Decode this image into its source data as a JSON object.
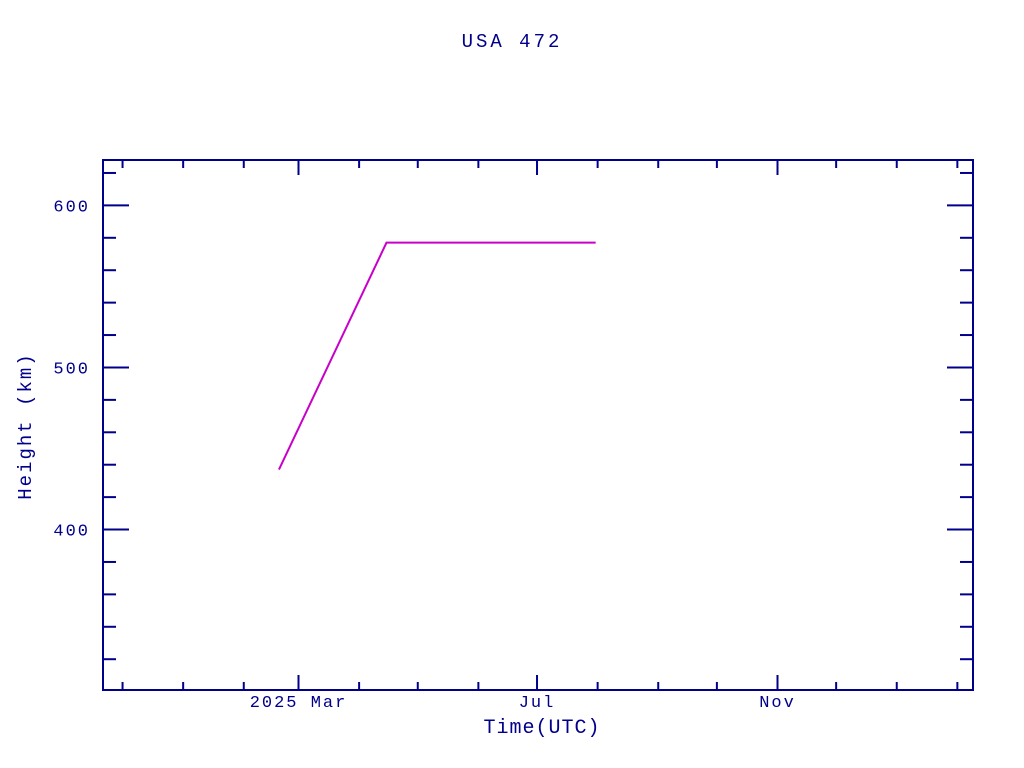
{
  "window": {
    "background": "#ffffff"
  },
  "colors": {
    "axis": "#00008b",
    "text": "#00008b",
    "line": "#c800c8"
  },
  "chart_data": {
    "type": "line",
    "title": "USA 472",
    "xlabel": "Time(UTC)",
    "ylabel": "Height (km)",
    "grid": false,
    "legend": "none",
    "x_domain": [
      "2024-11-21",
      "2026-02-09"
    ],
    "y_domain": [
      301,
      628
    ],
    "y_major_ticks": [
      400,
      500,
      600
    ],
    "y_minor_step": 20,
    "x_major_ticks": [
      {
        "date": "2025-03-01",
        "label": "2025 Mar"
      },
      {
        "date": "2025-07-01",
        "label": "Jul"
      },
      {
        "date": "2025-11-01",
        "label": "Nov"
      }
    ],
    "x_minor_tick_dates": [
      "2024-12-01",
      "2025-01-01",
      "2025-02-01",
      "2025-04-01",
      "2025-05-01",
      "2025-06-01",
      "2025-08-01",
      "2025-09-01",
      "2025-10-01",
      "2025-12-01",
      "2026-01-01",
      "2026-02-01"
    ],
    "series": [
      {
        "name": "USA 472 height",
        "color": "#c800c8",
        "points": [
          {
            "date": "2025-02-19",
            "height_km": 437
          },
          {
            "date": "2025-04-15",
            "height_km": 577
          },
          {
            "date": "2025-07-31",
            "height_km": 577
          }
        ]
      }
    ]
  }
}
